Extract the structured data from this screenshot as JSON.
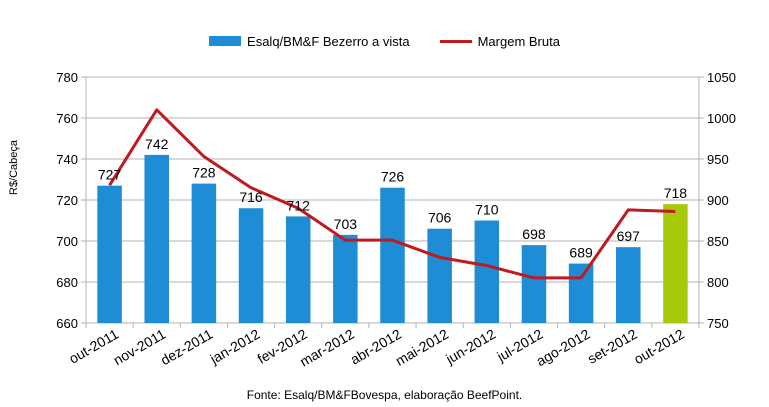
{
  "chart_data": {
    "type": "bar",
    "categories": [
      "out-2011",
      "nov-2011",
      "dez-2011",
      "jan-2012",
      "fev-2012",
      "mar-2012",
      "abr-2012",
      "mai-2012",
      "jun-2012",
      "jul-2012",
      "ago-2012",
      "set-2012",
      "out-2012"
    ],
    "series": [
      {
        "name": "Esalq/BM&F Bezerro a vista",
        "type": "bar",
        "axis": "left",
        "values": [
          727,
          742,
          728,
          716,
          712,
          703,
          726,
          706,
          710,
          698,
          689,
          697,
          718
        ],
        "color": "#1f8dd6",
        "highlight_index": 12,
        "highlight_color": "#a6c90c"
      },
      {
        "name": "Margem Bruta",
        "type": "line",
        "axis": "right",
        "values": [
          918,
          1010,
          953,
          915,
          890,
          851,
          851,
          830,
          820,
          805,
          805,
          888,
          886
        ],
        "color": "#c0191f"
      }
    ],
    "ylabel": "R$/Cabeça",
    "ylim": [
      660,
      780
    ],
    "yticks": [
      660,
      680,
      700,
      720,
      740,
      760,
      780
    ],
    "y2lim": [
      750,
      1050
    ],
    "y2ticks": [
      750,
      800,
      850,
      900,
      950,
      1000,
      1050
    ],
    "grid": true,
    "legend_position": "top",
    "source": "Fonte: Esalq/BM&FBovespa, elaboração BeefPoint."
  }
}
